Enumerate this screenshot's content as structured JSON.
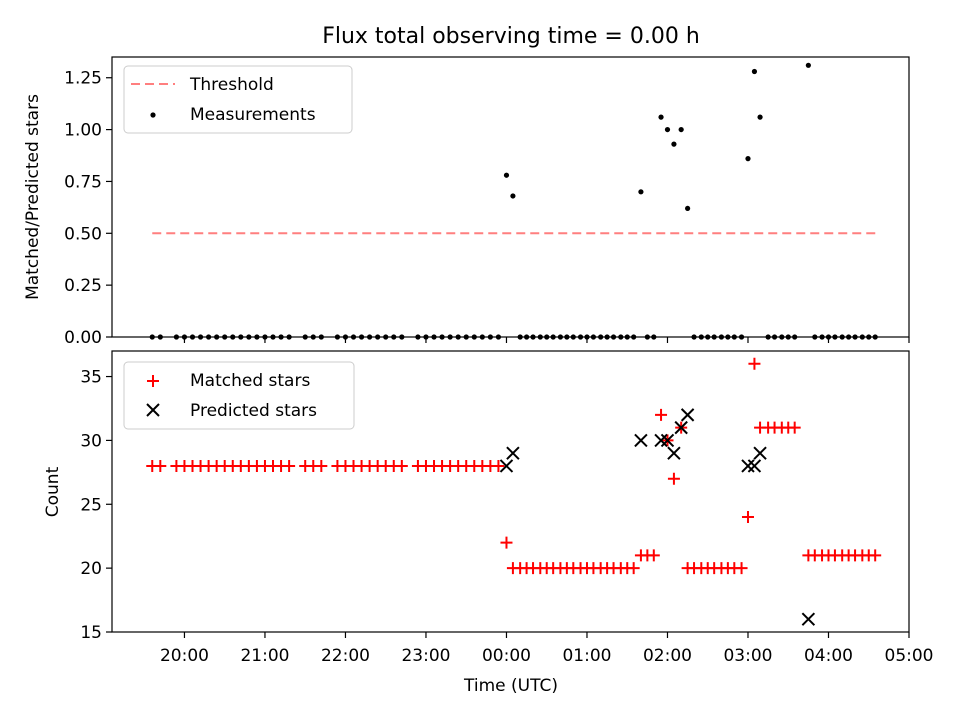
{
  "figure_title": "Flux total observing time = 0.00 h",
  "xlabel": "Time (UTC)",
  "x_tick_labels": [
    "20:00",
    "21:00",
    "22:00",
    "23:00",
    "00:00",
    "01:00",
    "02:00",
    "03:00",
    "04:00",
    "05:00"
  ],
  "colors": {
    "threshold": "#ff7f7f",
    "measurement": "#000000",
    "matched": "#ff0000",
    "predicted": "#000000"
  },
  "chart_data": [
    {
      "type": "scatter",
      "ylabel": "Matched/Predicted stars",
      "ylim": [
        0,
        1.35
      ],
      "xlim_hours": [
        19.1,
        29.0
      ],
      "x_unit": "hours since 00:00 on the first day (24 = 00:00 next day)",
      "y_tick_labels": [
        "0.00",
        "0.25",
        "0.50",
        "0.75",
        "1.00",
        "1.25"
      ],
      "legend": {
        "placement": "upper-left",
        "entries": [
          "Threshold",
          "Measurements"
        ]
      },
      "threshold": {
        "name": "Threshold",
        "y": 0.5,
        "x_range": [
          19.6,
          28.6
        ],
        "style": "dashed"
      },
      "series": [
        {
          "name": "Measurements",
          "marker": "dot",
          "points": [
            [
              19.6,
              0
            ],
            [
              19.7,
              0
            ],
            [
              19.9,
              0
            ],
            [
              20.0,
              0
            ],
            [
              20.1,
              0
            ],
            [
              20.2,
              0
            ],
            [
              20.3,
              0
            ],
            [
              20.4,
              0
            ],
            [
              20.5,
              0
            ],
            [
              20.6,
              0
            ],
            [
              20.7,
              0
            ],
            [
              20.8,
              0
            ],
            [
              20.9,
              0
            ],
            [
              21.0,
              0
            ],
            [
              21.1,
              0
            ],
            [
              21.2,
              0
            ],
            [
              21.3,
              0
            ],
            [
              21.5,
              0
            ],
            [
              21.6,
              0
            ],
            [
              21.7,
              0
            ],
            [
              21.9,
              0
            ],
            [
              22.0,
              0
            ],
            [
              22.1,
              0
            ],
            [
              22.2,
              0
            ],
            [
              22.3,
              0
            ],
            [
              22.4,
              0
            ],
            [
              22.5,
              0
            ],
            [
              22.6,
              0
            ],
            [
              22.7,
              0
            ],
            [
              22.9,
              0
            ],
            [
              23.0,
              0
            ],
            [
              23.1,
              0
            ],
            [
              23.2,
              0
            ],
            [
              23.3,
              0
            ],
            [
              23.4,
              0
            ],
            [
              23.5,
              0
            ],
            [
              23.6,
              0
            ],
            [
              23.7,
              0
            ],
            [
              23.8,
              0
            ],
            [
              23.9,
              0
            ],
            [
              24.0,
              0.78
            ],
            [
              24.08,
              0.68
            ],
            [
              24.17,
              0
            ],
            [
              24.25,
              0
            ],
            [
              24.33,
              0
            ],
            [
              24.42,
              0
            ],
            [
              24.5,
              0
            ],
            [
              24.58,
              0
            ],
            [
              24.67,
              0
            ],
            [
              24.75,
              0
            ],
            [
              24.83,
              0
            ],
            [
              24.92,
              0
            ],
            [
              25.0,
              0
            ],
            [
              25.08,
              0
            ],
            [
              25.17,
              0
            ],
            [
              25.25,
              0
            ],
            [
              25.33,
              0
            ],
            [
              25.42,
              0
            ],
            [
              25.5,
              0
            ],
            [
              25.58,
              0
            ],
            [
              25.67,
              0.7
            ],
            [
              25.75,
              0
            ],
            [
              25.83,
              0
            ],
            [
              25.92,
              1.06
            ],
            [
              26.0,
              1.0
            ],
            [
              26.08,
              0.93
            ],
            [
              26.17,
              1.0
            ],
            [
              26.25,
              0.62
            ],
            [
              26.33,
              0
            ],
            [
              26.42,
              0
            ],
            [
              26.5,
              0
            ],
            [
              26.58,
              0
            ],
            [
              26.67,
              0
            ],
            [
              26.75,
              0
            ],
            [
              26.83,
              0
            ],
            [
              26.92,
              0
            ],
            [
              27.0,
              0.86
            ],
            [
              27.08,
              1.28
            ],
            [
              27.15,
              1.06
            ],
            [
              27.25,
              0
            ],
            [
              27.33,
              0
            ],
            [
              27.42,
              0
            ],
            [
              27.5,
              0
            ],
            [
              27.58,
              0
            ],
            [
              27.75,
              1.31
            ],
            [
              27.83,
              0
            ],
            [
              27.92,
              0
            ],
            [
              28.0,
              0
            ],
            [
              28.08,
              0
            ],
            [
              28.17,
              0
            ],
            [
              28.25,
              0
            ],
            [
              28.33,
              0
            ],
            [
              28.42,
              0
            ],
            [
              28.5,
              0
            ],
            [
              28.58,
              0
            ]
          ]
        }
      ]
    },
    {
      "type": "scatter",
      "ylabel": "Count",
      "ylim": [
        15,
        37
      ],
      "xlim_hours": [
        19.1,
        29.0
      ],
      "y_tick_labels": [
        "15",
        "20",
        "25",
        "30",
        "35"
      ],
      "legend": {
        "placement": "upper-left",
        "entries": [
          "Matched stars",
          "Predicted stars"
        ]
      },
      "series": [
        {
          "name": "Matched stars",
          "marker": "plus",
          "points": [
            [
              19.6,
              28
            ],
            [
              19.7,
              28
            ],
            [
              19.9,
              28
            ],
            [
              20.0,
              28
            ],
            [
              20.1,
              28
            ],
            [
              20.2,
              28
            ],
            [
              20.3,
              28
            ],
            [
              20.4,
              28
            ],
            [
              20.5,
              28
            ],
            [
              20.6,
              28
            ],
            [
              20.7,
              28
            ],
            [
              20.8,
              28
            ],
            [
              20.9,
              28
            ],
            [
              21.0,
              28
            ],
            [
              21.1,
              28
            ],
            [
              21.2,
              28
            ],
            [
              21.3,
              28
            ],
            [
              21.5,
              28
            ],
            [
              21.6,
              28
            ],
            [
              21.7,
              28
            ],
            [
              21.9,
              28
            ],
            [
              22.0,
              28
            ],
            [
              22.1,
              28
            ],
            [
              22.2,
              28
            ],
            [
              22.3,
              28
            ],
            [
              22.4,
              28
            ],
            [
              22.5,
              28
            ],
            [
              22.6,
              28
            ],
            [
              22.7,
              28
            ],
            [
              22.9,
              28
            ],
            [
              23.0,
              28
            ],
            [
              23.1,
              28
            ],
            [
              23.2,
              28
            ],
            [
              23.3,
              28
            ],
            [
              23.4,
              28
            ],
            [
              23.5,
              28
            ],
            [
              23.6,
              28
            ],
            [
              23.7,
              28
            ],
            [
              23.8,
              28
            ],
            [
              23.9,
              28
            ],
            [
              24.0,
              22
            ],
            [
              24.08,
              20
            ],
            [
              24.17,
              20
            ],
            [
              24.25,
              20
            ],
            [
              24.33,
              20
            ],
            [
              24.42,
              20
            ],
            [
              24.5,
              20
            ],
            [
              24.58,
              20
            ],
            [
              24.67,
              20
            ],
            [
              24.75,
              20
            ],
            [
              24.83,
              20
            ],
            [
              24.92,
              20
            ],
            [
              25.0,
              20
            ],
            [
              25.08,
              20
            ],
            [
              25.17,
              20
            ],
            [
              25.25,
              20
            ],
            [
              25.33,
              20
            ],
            [
              25.42,
              20
            ],
            [
              25.5,
              20
            ],
            [
              25.58,
              20
            ],
            [
              25.67,
              21
            ],
            [
              25.75,
              21
            ],
            [
              25.83,
              21
            ],
            [
              25.92,
              32
            ],
            [
              26.0,
              30
            ],
            [
              26.08,
              27
            ],
            [
              26.17,
              31
            ],
            [
              26.25,
              20
            ],
            [
              26.33,
              20
            ],
            [
              26.42,
              20
            ],
            [
              26.5,
              20
            ],
            [
              26.58,
              20
            ],
            [
              26.67,
              20
            ],
            [
              26.75,
              20
            ],
            [
              26.83,
              20
            ],
            [
              26.92,
              20
            ],
            [
              27.0,
              24
            ],
            [
              27.08,
              36
            ],
            [
              27.15,
              31
            ],
            [
              27.25,
              31
            ],
            [
              27.33,
              31
            ],
            [
              27.42,
              31
            ],
            [
              27.5,
              31
            ],
            [
              27.58,
              31
            ],
            [
              27.75,
              21
            ],
            [
              27.83,
              21
            ],
            [
              27.92,
              21
            ],
            [
              28.0,
              21
            ],
            [
              28.08,
              21
            ],
            [
              28.17,
              21
            ],
            [
              28.25,
              21
            ],
            [
              28.33,
              21
            ],
            [
              28.42,
              21
            ],
            [
              28.5,
              21
            ],
            [
              28.58,
              21
            ]
          ]
        },
        {
          "name": "Predicted stars",
          "marker": "x",
          "points": [
            [
              24.0,
              28
            ],
            [
              24.08,
              29
            ],
            [
              25.67,
              30
            ],
            [
              25.92,
              30
            ],
            [
              26.0,
              30
            ],
            [
              26.08,
              29
            ],
            [
              26.17,
              31
            ],
            [
              26.25,
              32
            ],
            [
              27.0,
              28
            ],
            [
              27.08,
              28
            ],
            [
              27.15,
              29
            ],
            [
              27.75,
              16
            ]
          ]
        }
      ]
    }
  ]
}
